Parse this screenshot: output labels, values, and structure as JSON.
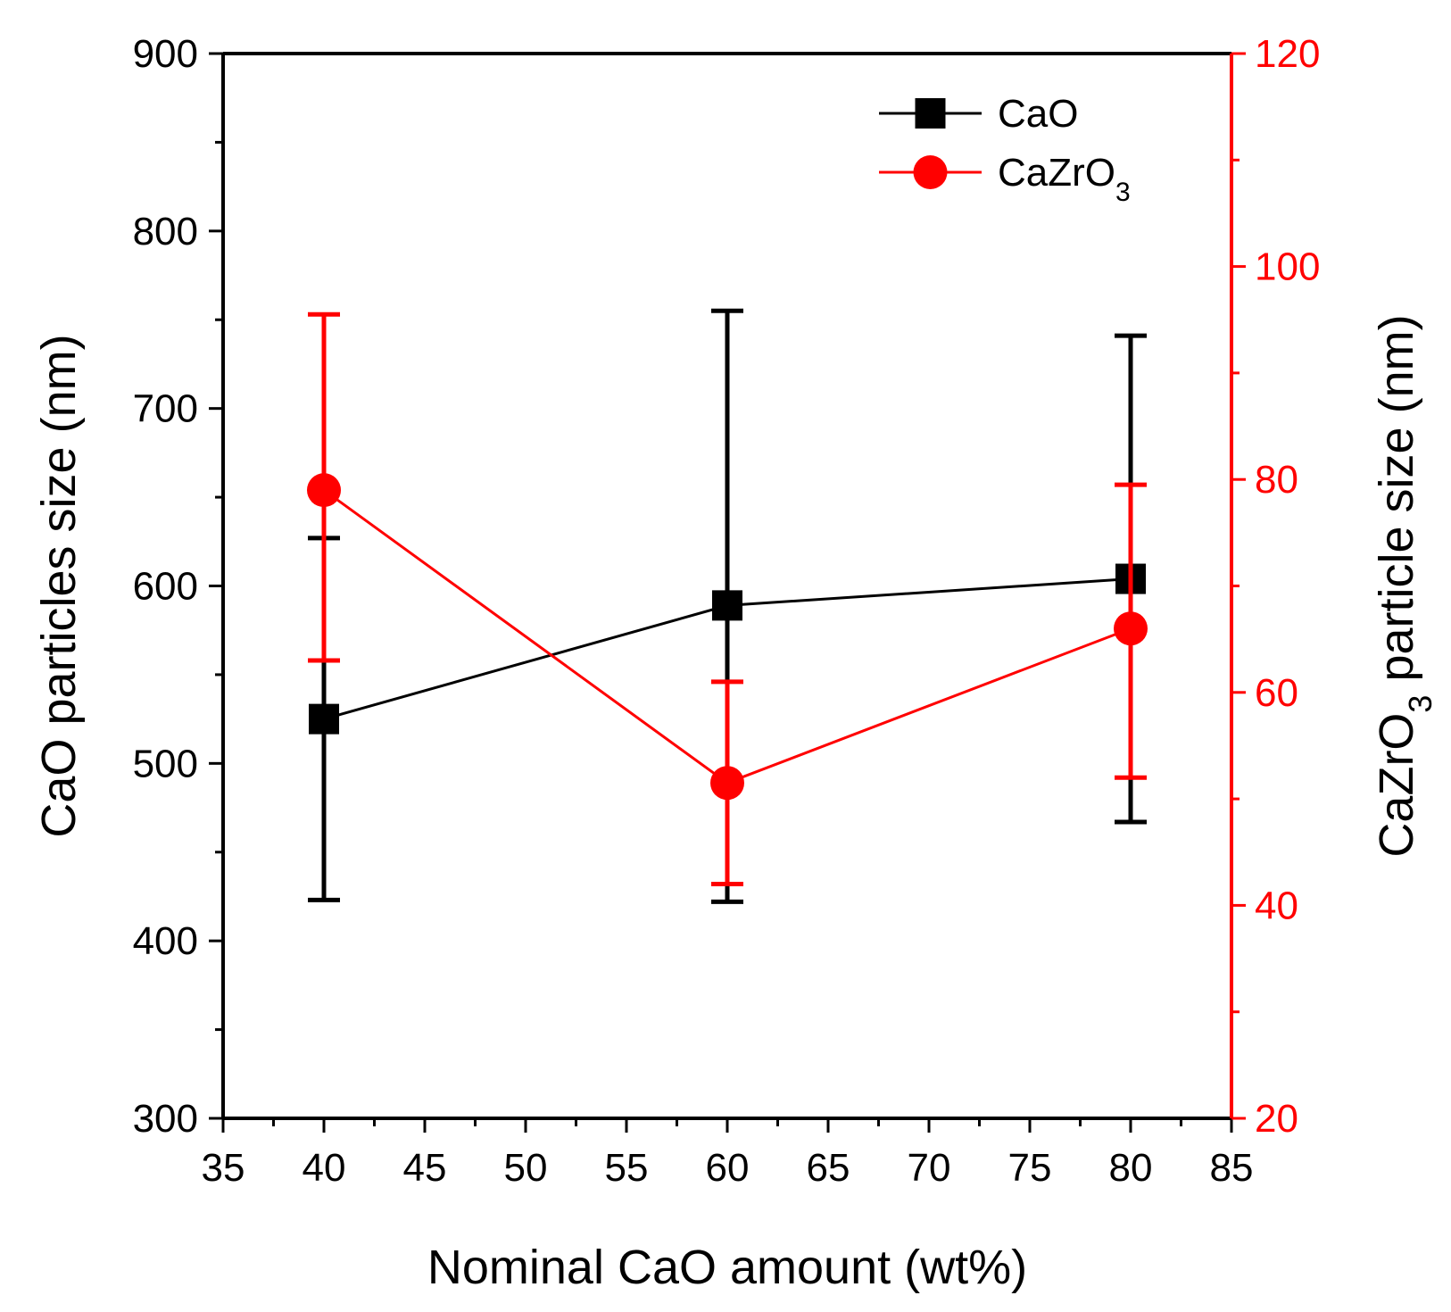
{
  "chart_data": {
    "type": "line",
    "title": "",
    "xlabel": "Nominal CaO amount (wt%)",
    "ylabel_left": "CaO particles size (nm)",
    "ylabel_right": {
      "main": "CaZrO",
      "sub": "3",
      "rest": " particle size (nm)"
    },
    "xlim": [
      35,
      85
    ],
    "ylim_left": [
      300,
      900
    ],
    "ylim_right": [
      20,
      120
    ],
    "x_ticks": [
      35,
      40,
      45,
      50,
      55,
      60,
      65,
      70,
      75,
      80,
      85
    ],
    "y_left_ticks": [
      300,
      400,
      500,
      600,
      700,
      800,
      900
    ],
    "y_right_ticks": [
      20,
      40,
      60,
      80,
      100,
      120
    ],
    "grid": false,
    "legend_position": "top-right",
    "series": [
      {
        "name": "CaO",
        "name_sub": "",
        "axis": "left",
        "color": "#000000",
        "marker": "square",
        "x": [
          40,
          60,
          80
        ],
        "y": [
          525,
          589,
          604
        ],
        "err_low": [
          423,
          422,
          467
        ],
        "err_high": [
          627,
          755,
          741
        ]
      },
      {
        "name": "CaZrO",
        "name_sub": "3",
        "axis": "right",
        "color": "#ff0000",
        "marker": "circle",
        "x": [
          40,
          60,
          80
        ],
        "y": [
          79,
          51.5,
          66
        ],
        "err_low": [
          63,
          42,
          52
        ],
        "err_high": [
          95.5,
          61,
          79.5
        ]
      }
    ]
  }
}
